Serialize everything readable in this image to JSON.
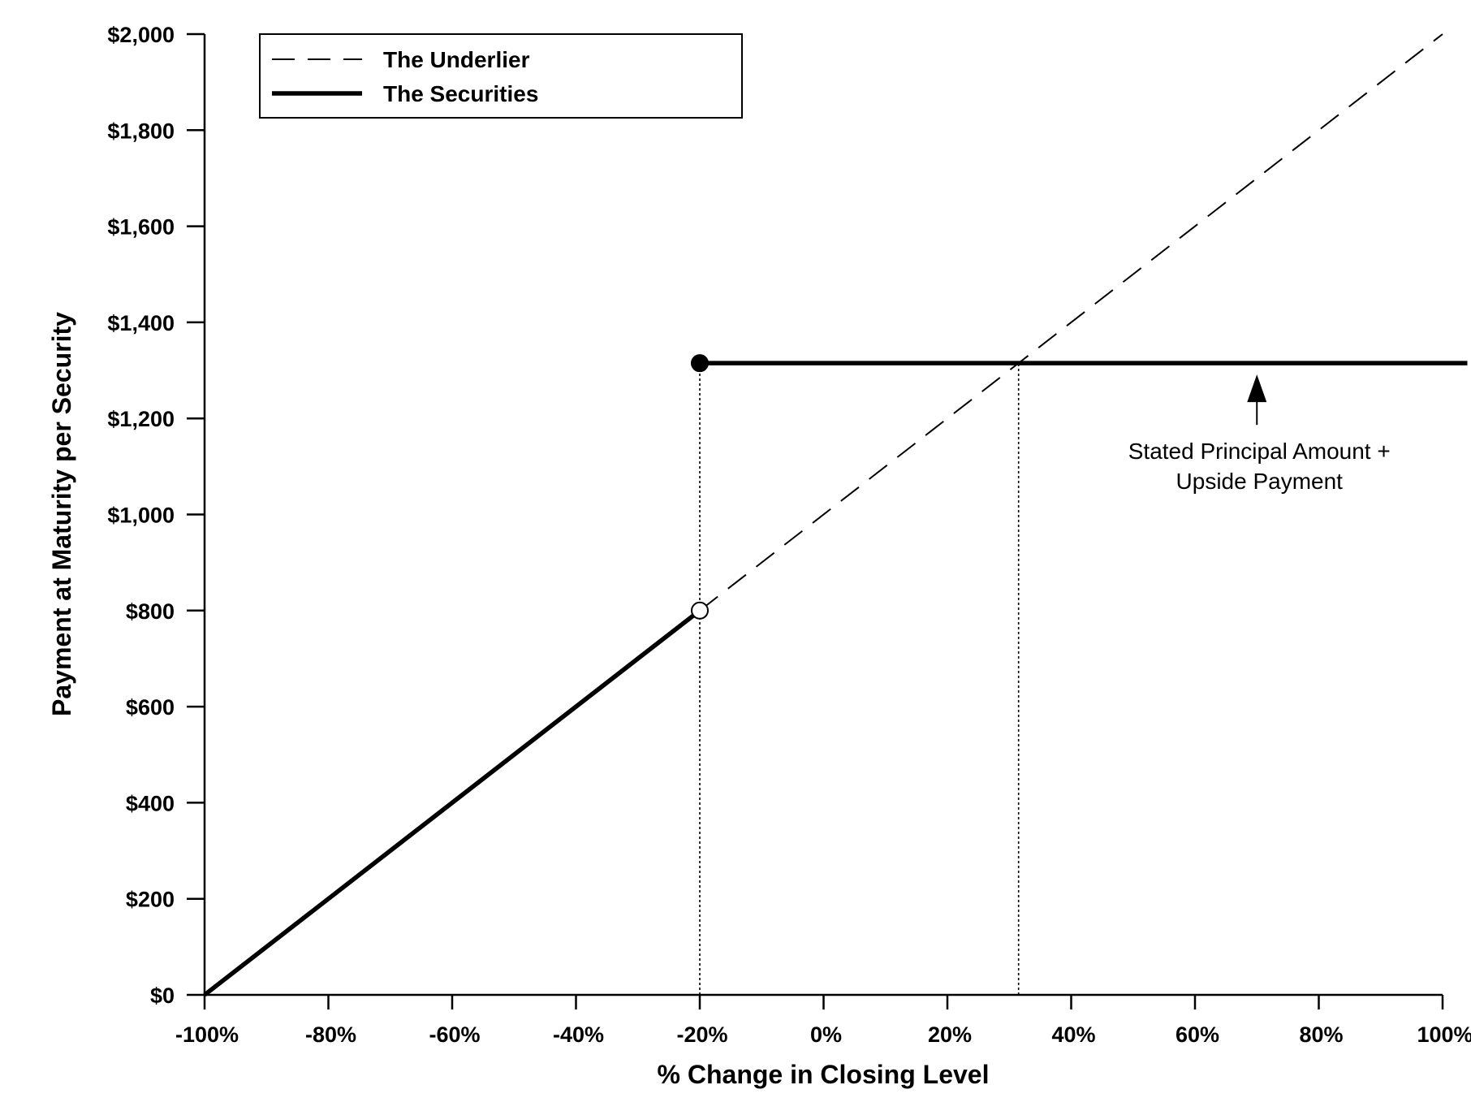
{
  "chart_data": {
    "type": "line",
    "xlabel": "% Change in Closing Level",
    "ylabel": "Payment at Maturity per Security",
    "xlim": [
      -100,
      100
    ],
    "ylim": [
      0,
      2000
    ],
    "x_ticks": [
      -100,
      -80,
      -60,
      -40,
      -20,
      0,
      20,
      40,
      60,
      80,
      100
    ],
    "x_tick_labels": [
      "-100%",
      "-80%",
      "-60%",
      "-40%",
      "-20%",
      "0%",
      "20%",
      "40%",
      "60%",
      "80%",
      "100%"
    ],
    "y_ticks": [
      0,
      200,
      400,
      600,
      800,
      1000,
      1200,
      1400,
      1600,
      1800,
      2000
    ],
    "y_tick_labels": [
      "$0",
      "$200",
      "$400",
      "$600",
      "$800",
      "$1,000",
      "$1,200",
      "$1,400",
      "$1,600",
      "$1,800",
      "$2,000"
    ],
    "grid": false,
    "legend_position": "top-left",
    "series": [
      {
        "name": "The Underlier",
        "style": "dashed",
        "color": "#000000",
        "points": [
          [
            -20,
            800
          ],
          [
            100,
            2000
          ]
        ]
      },
      {
        "name": "The Securities",
        "style": "solid-thick",
        "color": "#000000",
        "segments": [
          [
            [
              -100,
              0
            ],
            [
              -20,
              800
            ]
          ],
          [
            [
              -20,
              1315
            ],
            [
              104,
              1315
            ]
          ]
        ]
      }
    ],
    "markers": [
      {
        "x": -20,
        "y": 800,
        "fill": "open"
      },
      {
        "x": -20,
        "y": 1315,
        "fill": "filled"
      }
    ],
    "reference_lines": [
      {
        "x": -20,
        "y_from": 0,
        "y_to": 1315,
        "style": "dotted"
      },
      {
        "x": 31.5,
        "y_from": 0,
        "y_to": 1315,
        "style": "dotted"
      }
    ],
    "annotations": [
      {
        "lines": [
          "Stated Principal Amount +",
          "Upside Payment"
        ],
        "arrow_to": {
          "x": 70,
          "y": 1315
        }
      }
    ]
  }
}
